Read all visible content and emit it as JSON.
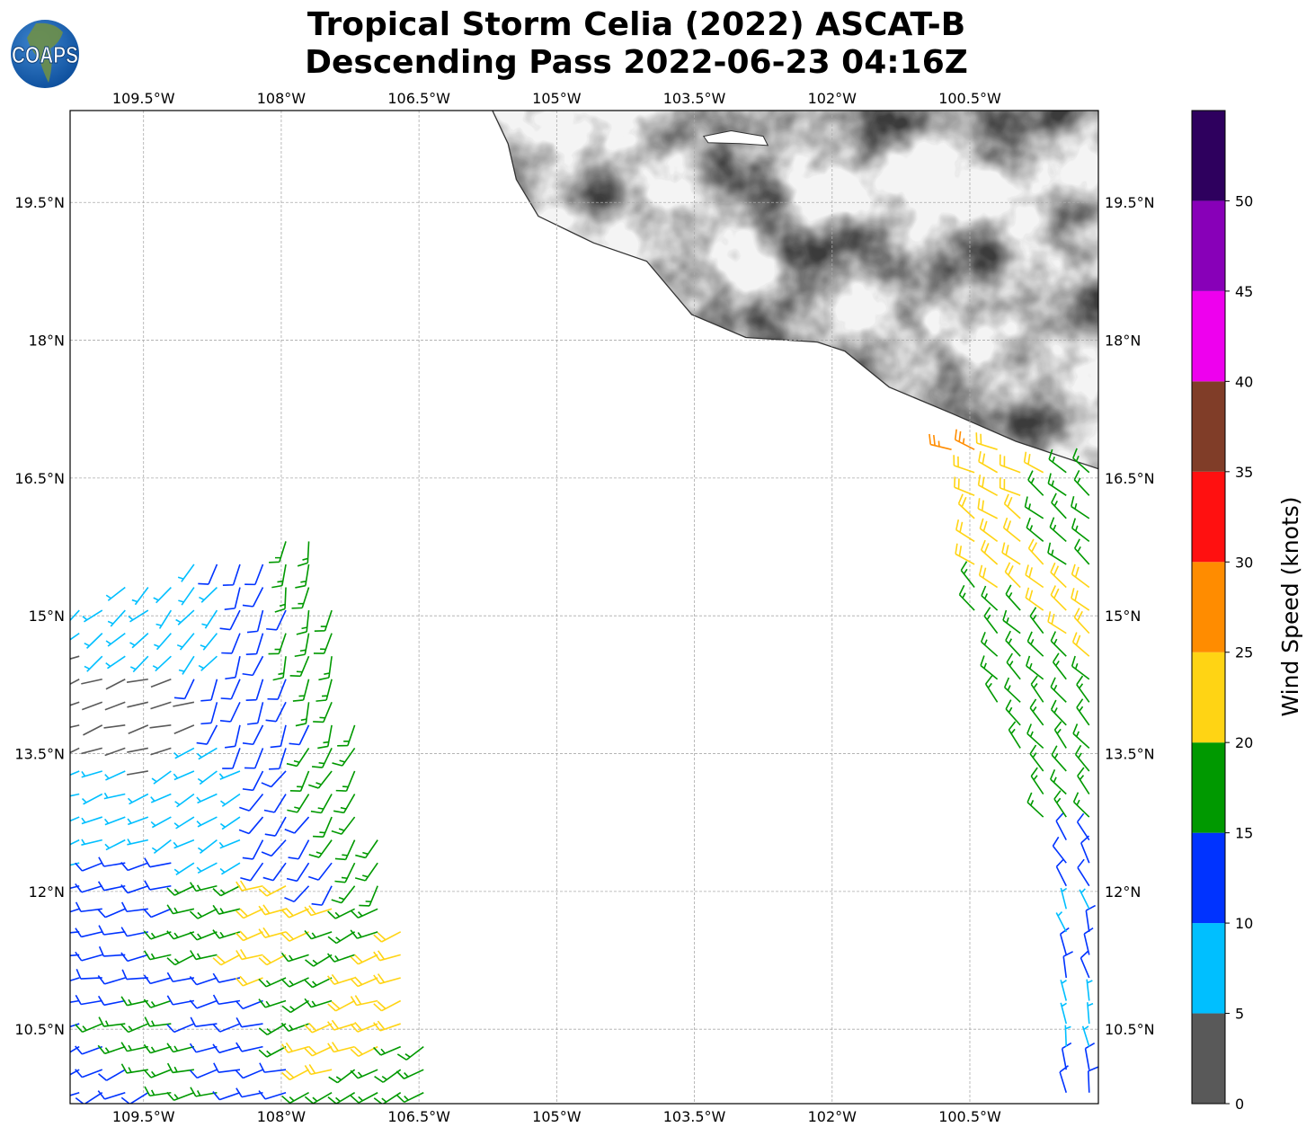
{
  "header": {
    "title_line1": "Tropical Storm Celia (2022) ASCAT-B",
    "title_line2": "Descending Pass 2022-06-23 04:16Z",
    "logo_text": "COAPS"
  },
  "chart_data": {
    "type": "map",
    "subtype": "wind-barbs",
    "lon_range": [
      -110.3,
      -99.1
    ],
    "lat_range": [
      9.69,
      20.5
    ],
    "lon_ticks": [
      -109.5,
      -108,
      -106.5,
      -105,
      -103.5,
      -102,
      -100.5
    ],
    "lon_tick_labels": [
      "109.5°W",
      "108°W",
      "106.5°W",
      "105°W",
      "103.5°W",
      "102°W",
      "100.5°W"
    ],
    "lat_ticks": [
      19.5,
      18,
      16.5,
      15,
      13.5,
      12,
      10.5
    ],
    "lat_tick_labels": [
      "19.5°N",
      "18°N",
      "16.5°N",
      "15°N",
      "13.5°N",
      "12°N",
      "10.5°N"
    ],
    "grid": true,
    "colorbar": {
      "label": "Wind Speed (knots)",
      "bounds": [
        0,
        5,
        10,
        15,
        20,
        25,
        30,
        35,
        40,
        45,
        50,
        55
      ],
      "tick_labels": [
        "0",
        "5",
        "10",
        "15",
        "20",
        "25",
        "30",
        "35",
        "40",
        "45",
        "50"
      ],
      "colors": [
        "#595959",
        "#00bfff",
        "#0033ff",
        "#009900",
        "#ffd414",
        "#ff8c00",
        "#ff1010",
        "#803d28",
        "#ee00ee",
        "#8800b8",
        "#2e005e"
      ]
    },
    "coastline": [
      [
        -105.7,
        20.5
      ],
      [
        -105.53,
        20.14
      ],
      [
        -105.44,
        19.75
      ],
      [
        -105.2,
        19.35
      ],
      [
        -104.6,
        19.06
      ],
      [
        -104.02,
        18.86
      ],
      [
        -103.53,
        18.28
      ],
      [
        -102.94,
        18.03
      ],
      [
        -102.16,
        17.98
      ],
      [
        -101.86,
        17.88
      ],
      [
        -101.38,
        17.49
      ],
      [
        -100.69,
        17.2
      ],
      [
        -100.0,
        16.9
      ],
      [
        -99.1,
        16.6
      ]
    ],
    "lake": [
      [
        -103.4,
        20.22
      ],
      [
        -103.1,
        20.28
      ],
      [
        -102.75,
        20.22
      ],
      [
        -102.7,
        20.12
      ],
      [
        -103.0,
        20.14
      ],
      [
        -103.35,
        20.15
      ]
    ],
    "swaths": [
      [
        [
          -110.3,
          15.05
        ],
        [
          -109.6,
          15.4
        ],
        [
          -108.9,
          15.6
        ],
        [
          -108.1,
          15.8
        ],
        [
          -107.64,
          15.93
        ],
        [
          -107.4,
          14.9
        ],
        [
          -106.9,
          12.5
        ],
        [
          -106.27,
          9.69
        ],
        [
          -110.3,
          9.69
        ]
      ],
      [
        [
          -100.74,
          16.91
        ],
        [
          -99.6,
          16.75
        ],
        [
          -99.1,
          16.55
        ],
        [
          -99.1,
          9.69
        ],
        [
          -99.45,
          9.69
        ],
        [
          -99.68,
          12.6
        ],
        [
          -100.4,
          14.5
        ]
      ]
    ],
    "wind_samples": [
      {
        "lon": -110.0,
        "lat": 14.0,
        "speed": 3,
        "dir": 250
      },
      {
        "lon": -109.5,
        "lat": 13.7,
        "speed": 3,
        "dir": 255
      },
      {
        "lon": -109.8,
        "lat": 15.0,
        "speed": 8,
        "dir": 230
      },
      {
        "lon": -109.0,
        "lat": 15.2,
        "speed": 8,
        "dir": 220
      },
      {
        "lon": -108.3,
        "lat": 15.4,
        "speed": 12,
        "dir": 200
      },
      {
        "lon": -107.8,
        "lat": 15.6,
        "speed": 17,
        "dir": 190
      },
      {
        "lon": -107.6,
        "lat": 14.5,
        "speed": 17,
        "dir": 195
      },
      {
        "lon": -108.2,
        "lat": 14.0,
        "speed": 12,
        "dir": 200
      },
      {
        "lon": -109.0,
        "lat": 13.2,
        "speed": 8,
        "dir": 240
      },
      {
        "lon": -109.8,
        "lat": 12.9,
        "speed": 8,
        "dir": 250
      },
      {
        "lon": -108.7,
        "lat": 12.6,
        "speed": 8,
        "dir": 240
      },
      {
        "lon": -107.5,
        "lat": 13.0,
        "speed": 17,
        "dir": 210
      },
      {
        "lon": -107.9,
        "lat": 12.8,
        "speed": 12,
        "dir": 215
      },
      {
        "lon": -109.5,
        "lat": 12.0,
        "speed": 12,
        "dir": 255
      },
      {
        "lon": -108.8,
        "lat": 11.7,
        "speed": 17,
        "dir": 250
      },
      {
        "lon": -108.1,
        "lat": 11.4,
        "speed": 22,
        "dir": 250
      },
      {
        "lon": -107.7,
        "lat": 11.0,
        "speed": 17,
        "dir": 245
      },
      {
        "lon": -109.8,
        "lat": 11.3,
        "speed": 12,
        "dir": 260
      },
      {
        "lon": -108.5,
        "lat": 10.8,
        "speed": 12,
        "dir": 255
      },
      {
        "lon": -107.1,
        "lat": 10.6,
        "speed": 22,
        "dir": 250
      },
      {
        "lon": -109.5,
        "lat": 10.3,
        "speed": 17,
        "dir": 255
      },
      {
        "lon": -106.8,
        "lat": 10.0,
        "speed": 17,
        "dir": 240
      },
      {
        "lon": -109.8,
        "lat": 10.0,
        "speed": 12,
        "dir": 245
      },
      {
        "lon": -100.6,
        "lat": 16.85,
        "speed": 27,
        "dir": 290
      },
      {
        "lon": -100.4,
        "lat": 16.6,
        "speed": 22,
        "dir": 295
      },
      {
        "lon": -100.4,
        "lat": 16.0,
        "speed": 22,
        "dir": 305
      },
      {
        "lon": -99.7,
        "lat": 15.4,
        "speed": 22,
        "dir": 310
      },
      {
        "lon": -99.4,
        "lat": 15.8,
        "speed": 17,
        "dir": 310
      },
      {
        "lon": -100.2,
        "lat": 14.8,
        "speed": 17,
        "dir": 315
      },
      {
        "lon": -100.1,
        "lat": 13.5,
        "speed": 17,
        "dir": 320
      },
      {
        "lon": -99.5,
        "lat": 13.2,
        "speed": 17,
        "dir": 320
      },
      {
        "lon": -99.6,
        "lat": 12.3,
        "speed": 12,
        "dir": 330
      },
      {
        "lon": -99.6,
        "lat": 11.8,
        "speed": 8,
        "dir": 340
      },
      {
        "lon": -99.3,
        "lat": 11.2,
        "speed": 12,
        "dir": 345
      },
      {
        "lon": -99.2,
        "lat": 10.5,
        "speed": 8,
        "dir": 350
      },
      {
        "lon": -99.2,
        "lat": 9.9,
        "speed": 12,
        "dir": 350
      }
    ]
  }
}
